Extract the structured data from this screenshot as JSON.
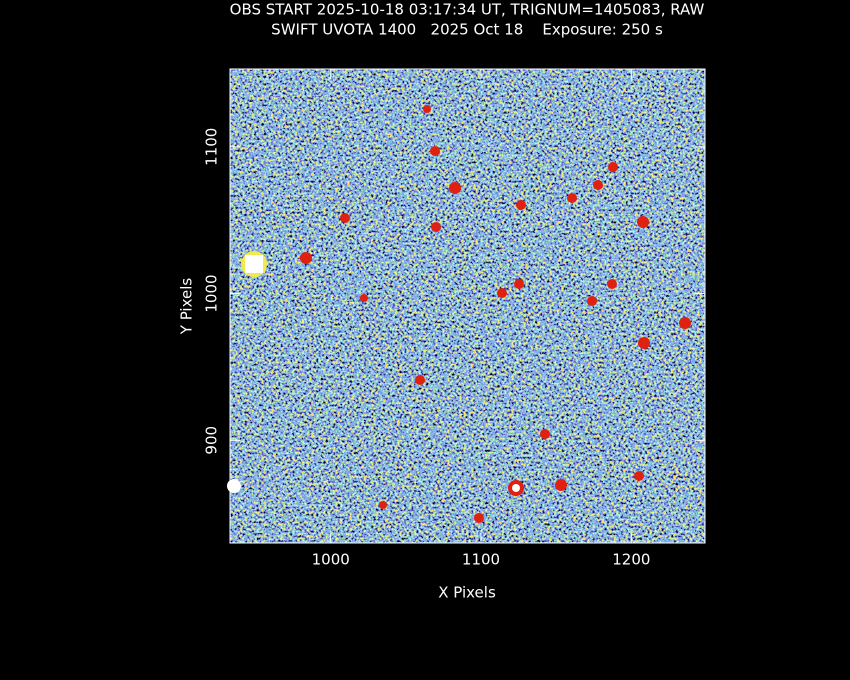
{
  "chart_data": {
    "type": "image",
    "title": "OBS START 2025-10-18 03:17:34 UT, TRIGNUM=1405083, RAW",
    "subtitle": "SWIFT UVOTA 1400   2025 Oct 18    Exposure: 250 s",
    "x_label": "X Pixels",
    "y_label": "Y Pixels",
    "xlim": [
      933,
      1249
    ],
    "ylim": [
      830,
      1153
    ],
    "xticks": [
      1000,
      1100,
      1200
    ],
    "yticks": [
      900,
      1000,
      1100
    ]
  }
}
